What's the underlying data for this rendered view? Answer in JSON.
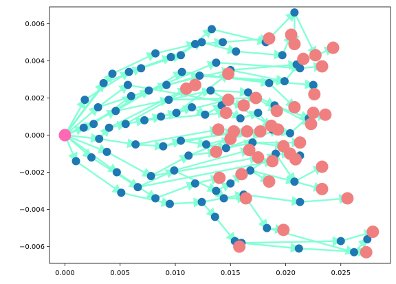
{
  "chart_data": {
    "type": "scatter",
    "title": "",
    "xlabel": "",
    "ylabel": "",
    "xlim": [
      -0.0014,
      0.0295
    ],
    "ylim": [
      -0.0069,
      0.0069
    ],
    "x_ticks": [
      0.0,
      0.005,
      0.01,
      0.015,
      0.02,
      0.025
    ],
    "x_tick_labels": [
      "0.000",
      "0.005",
      "0.010",
      "0.015",
      "0.020",
      "0.025"
    ],
    "y_ticks": [
      -0.006,
      -0.004,
      -0.002,
      0.0,
      0.002,
      0.004,
      0.006
    ],
    "y_tick_labels": [
      "−0.006",
      "−0.004",
      "−0.002",
      "0.000",
      "0.002",
      "0.004",
      "0.006"
    ],
    "grid": false,
    "legend": "none",
    "colors": {
      "node": "#1f77b4",
      "leaf": "#f08080",
      "root": "#ff69b4",
      "edge": "#7fffd4"
    },
    "root": [
      0.0,
      0.0
    ],
    "nodes": [
      [
        0.0018,
        0.0019
      ],
      [
        0.0035,
        0.0028
      ],
      [
        0.0043,
        0.0033
      ],
      [
        0.0058,
        0.0034
      ],
      [
        0.0069,
        0.0036
      ],
      [
        0.0082,
        0.0044
      ],
      [
        0.0096,
        0.0042
      ],
      [
        0.0105,
        0.0043
      ],
      [
        0.0118,
        0.0049
      ],
      [
        0.0124,
        0.005
      ],
      [
        0.0133,
        0.0057
      ],
      [
        0.0143,
        0.005
      ],
      [
        0.0155,
        0.0045
      ],
      [
        0.0182,
        0.005
      ],
      [
        0.0197,
        0.0043
      ],
      [
        0.0208,
        0.0066
      ],
      [
        0.021,
        0.0038
      ],
      [
        0.0213,
        0.0036
      ],
      [
        0.0225,
        0.0027
      ],
      [
        0.0199,
        0.0029
      ],
      [
        0.0185,
        0.0028
      ],
      [
        0.015,
        0.0035
      ],
      [
        0.0137,
        0.0039
      ],
      [
        0.0122,
        0.0032
      ],
      [
        0.0106,
        0.0034
      ],
      [
        0.0092,
        0.0027
      ],
      [
        0.0076,
        0.0024
      ],
      [
        0.006,
        0.0021
      ],
      [
        0.0046,
        0.0013
      ],
      [
        0.003,
        0.0015
      ],
      [
        0.0017,
        0.0004
      ],
      [
        0.0026,
        0.0006
      ],
      [
        0.004,
        0.0004
      ],
      [
        0.0055,
        0.0006
      ],
      [
        0.0072,
        0.0008
      ],
      [
        0.0087,
        0.001
      ],
      [
        0.0101,
        0.0012
      ],
      [
        0.0115,
        0.0015
      ],
      [
        0.0127,
        0.0011
      ],
      [
        0.0142,
        0.0016
      ],
      [
        0.0159,
        0.0009
      ],
      [
        0.0175,
        0.0012
      ],
      [
        0.0188,
        0.0003
      ],
      [
        0.0204,
        0.0001
      ],
      [
        0.001,
        -0.0014
      ],
      [
        0.0024,
        -0.0012
      ],
      [
        0.0038,
        -0.0009
      ],
      [
        0.0047,
        -0.002
      ],
      [
        0.0051,
        -0.0031
      ],
      [
        0.0066,
        -0.0028
      ],
      [
        0.0078,
        -0.0022
      ],
      [
        0.0082,
        -0.0034
      ],
      [
        0.0095,
        -0.0037
      ],
      [
        0.0099,
        -0.0019
      ],
      [
        0.0112,
        -0.0011
      ],
      [
        0.0118,
        -0.0026
      ],
      [
        0.0124,
        -0.0036
      ],
      [
        0.0137,
        -0.003
      ],
      [
        0.0136,
        -0.0044
      ],
      [
        0.0144,
        -0.0034
      ],
      [
        0.015,
        -0.0026
      ],
      [
        0.0162,
        -0.0032
      ],
      [
        0.0168,
        -0.0019
      ],
      [
        0.0154,
        -0.0057
      ],
      [
        0.016,
        -0.0058
      ],
      [
        0.0183,
        -0.005
      ],
      [
        0.0191,
        -0.001
      ],
      [
        0.0213,
        -0.0011
      ],
      [
        0.0208,
        -0.0025
      ],
      [
        0.0213,
        -0.0036
      ],
      [
        0.0212,
        -0.0061
      ],
      [
        0.025,
        -0.0057
      ],
      [
        0.0262,
        -0.0063
      ],
      [
        0.0274,
        -0.0056
      ],
      [
        0.0031,
        -0.0002
      ],
      [
        0.0064,
        -0.0005
      ],
      [
        0.0089,
        -0.0006
      ],
      [
        0.0105,
        -0.0003
      ],
      [
        0.0128,
        -0.0005
      ],
      [
        0.0146,
        -0.0007
      ],
      [
        0.017,
        -0.0004
      ],
      [
        0.0057,
        0.0027
      ],
      [
        0.0094,
        0.0019
      ],
      [
        0.0132,
        0.0024
      ],
      [
        0.0166,
        0.0023
      ],
      [
        0.019,
        0.0016
      ],
      [
        0.0221,
        0.0009
      ]
    ],
    "leaves": [
      [
        0.0185,
        0.0052
      ],
      [
        0.0205,
        0.0054
      ],
      [
        0.0208,
        0.0049
      ],
      [
        0.0227,
        0.0043
      ],
      [
        0.0243,
        0.0047
      ],
      [
        0.0233,
        0.0037
      ],
      [
        0.0216,
        0.0041
      ],
      [
        0.0226,
        0.0022
      ],
      [
        0.0208,
        0.0015
      ],
      [
        0.0225,
        0.0012
      ],
      [
        0.0236,
        0.0011
      ],
      [
        0.0223,
        0.0006
      ],
      [
        0.0192,
        0.0013
      ],
      [
        0.0187,
        0.0005
      ],
      [
        0.0173,
        0.002
      ],
      [
        0.0162,
        0.0016
      ],
      [
        0.0148,
        0.0033
      ],
      [
        0.0148,
        0.0019
      ],
      [
        0.0146,
        0.0012
      ],
      [
        0.0139,
        0.0003
      ],
      [
        0.0153,
        0.0002
      ],
      [
        0.0165,
        0.0002
      ],
      [
        0.0177,
        0.0002
      ],
      [
        0.0193,
        0.0003
      ],
      [
        0.0118,
        0.0027
      ],
      [
        0.011,
        0.0025
      ],
      [
        0.015,
        -0.0002
      ],
      [
        0.0167,
        -0.0008
      ],
      [
        0.0175,
        -0.0012
      ],
      [
        0.0188,
        -0.0014
      ],
      [
        0.0198,
        -0.0006
      ],
      [
        0.0213,
        -0.0004
      ],
      [
        0.0204,
        -0.001
      ],
      [
        0.0209,
        -0.0013
      ],
      [
        0.0233,
        -0.0017
      ],
      [
        0.016,
        -0.0021
      ],
      [
        0.0185,
        -0.0025
      ],
      [
        0.0233,
        -0.0029
      ],
      [
        0.0256,
        -0.0034
      ],
      [
        0.0164,
        -0.0034
      ],
      [
        0.0198,
        -0.0051
      ],
      [
        0.0279,
        -0.0052
      ],
      [
        0.0273,
        -0.0063
      ],
      [
        0.0158,
        -0.006
      ],
      [
        0.014,
        -0.0023
      ],
      [
        0.0137,
        -0.0009
      ]
    ],
    "edges": [
      [
        0.0,
        0.0,
        0.0018,
        0.0019
      ],
      [
        0.0,
        0.0,
        0.0035,
        0.0028
      ],
      [
        0.0,
        0.0,
        0.0043,
        0.0033
      ],
      [
        0.0,
        0.0,
        0.0017,
        0.0004
      ],
      [
        0.0,
        0.0,
        0.0026,
        0.0006
      ],
      [
        0.0,
        0.0,
        0.001,
        -0.0014
      ],
      [
        0.0,
        0.0,
        0.0024,
        -0.0012
      ],
      [
        0.0,
        0.0,
        0.0031,
        -0.0002
      ],
      [
        0.0,
        0.0,
        0.0046,
        0.0013
      ],
      [
        0.0,
        0.0,
        0.0038,
        -0.0009
      ],
      [
        0.0,
        0.0,
        0.0047,
        -0.002
      ],
      [
        0.0,
        0.0,
        0.003,
        0.0015
      ],
      [
        0.0018,
        0.0019,
        0.0058,
        0.0034
      ],
      [
        0.0035,
        0.0028,
        0.0069,
        0.0036
      ],
      [
        0.0043,
        0.0033,
        0.0082,
        0.0044
      ],
      [
        0.0058,
        0.0034,
        0.0096,
        0.0042
      ],
      [
        0.0069,
        0.0036,
        0.0105,
        0.0043
      ],
      [
        0.0082,
        0.0044,
        0.0118,
        0.0049
      ],
      [
        0.0096,
        0.0042,
        0.0124,
        0.005
      ],
      [
        0.0105,
        0.0043,
        0.0133,
        0.0057
      ],
      [
        0.0118,
        0.0049,
        0.0143,
        0.005
      ],
      [
        0.0124,
        0.005,
        0.0155,
        0.0045
      ],
      [
        0.0133,
        0.0057,
        0.0182,
        0.005
      ],
      [
        0.0143,
        0.005,
        0.0185,
        0.0052
      ],
      [
        0.0155,
        0.0045,
        0.0197,
        0.0043
      ],
      [
        0.0182,
        0.005,
        0.0208,
        0.0066
      ],
      [
        0.0197,
        0.0043,
        0.0205,
        0.0054
      ],
      [
        0.0208,
        0.0066,
        0.0208,
        0.0049
      ],
      [
        0.0208,
        0.0066,
        0.0227,
        0.0043
      ],
      [
        0.021,
        0.0038,
        0.0243,
        0.0047
      ],
      [
        0.0213,
        0.0036,
        0.0233,
        0.0037
      ],
      [
        0.0199,
        0.0029,
        0.0216,
        0.0041
      ],
      [
        0.0225,
        0.0027,
        0.0226,
        0.0022
      ],
      [
        0.0185,
        0.0028,
        0.0208,
        0.0015
      ],
      [
        0.015,
        0.0035,
        0.021,
        0.0038
      ],
      [
        0.0137,
        0.0039,
        0.0213,
        0.0036
      ],
      [
        0.0122,
        0.0032,
        0.0199,
        0.0029
      ],
      [
        0.0106,
        0.0034,
        0.0185,
        0.0028
      ],
      [
        0.0092,
        0.0027,
        0.015,
        0.0035
      ],
      [
        0.0076,
        0.0024,
        0.0137,
        0.0039
      ],
      [
        0.006,
        0.0021,
        0.0122,
        0.0032
      ],
      [
        0.0046,
        0.0013,
        0.0106,
        0.0034
      ],
      [
        0.003,
        0.0015,
        0.0092,
        0.0027
      ],
      [
        0.0017,
        0.0004,
        0.0076,
        0.0024
      ],
      [
        0.0026,
        0.0006,
        0.006,
        0.0021
      ],
      [
        0.0031,
        -0.0002,
        0.004,
        0.0004
      ],
      [
        0.004,
        0.0004,
        0.0055,
        0.0006
      ],
      [
        0.0055,
        0.0006,
        0.0072,
        0.0008
      ],
      [
        0.0072,
        0.0008,
        0.0087,
        0.001
      ],
      [
        0.0087,
        0.001,
        0.0101,
        0.0012
      ],
      [
        0.0101,
        0.0012,
        0.0115,
        0.0015
      ],
      [
        0.0115,
        0.0015,
        0.0127,
        0.0011
      ],
      [
        0.0127,
        0.0011,
        0.0142,
        0.0016
      ],
      [
        0.0142,
        0.0016,
        0.0159,
        0.0009
      ],
      [
        0.0159,
        0.0009,
        0.0175,
        0.0012
      ],
      [
        0.0175,
        0.0012,
        0.0188,
        0.0003
      ],
      [
        0.0188,
        0.0003,
        0.0204,
        0.0001
      ],
      [
        0.0204,
        0.0001,
        0.0225,
        0.0012
      ],
      [
        0.0221,
        0.0009,
        0.0236,
        0.0011
      ],
      [
        0.019,
        0.0016,
        0.0223,
        0.0006
      ],
      [
        0.0166,
        0.0023,
        0.0192,
        0.0013
      ],
      [
        0.0132,
        0.0024,
        0.0187,
        0.0005
      ],
      [
        0.0094,
        0.0019,
        0.0173,
        0.002
      ],
      [
        0.0057,
        0.0027,
        0.0162,
        0.0016
      ],
      [
        0.0101,
        0.0012,
        0.0148,
        0.0033
      ],
      [
        0.0087,
        0.001,
        0.0148,
        0.0019
      ],
      [
        0.0072,
        0.0008,
        0.0146,
        0.0012
      ],
      [
        0.0064,
        -0.0005,
        0.0139,
        0.0003
      ],
      [
        0.0089,
        -0.0006,
        0.0153,
        0.0002
      ],
      [
        0.0105,
        -0.0003,
        0.0165,
        0.0002
      ],
      [
        0.0128,
        -0.0005,
        0.0177,
        0.0002
      ],
      [
        0.0146,
        -0.0007,
        0.0193,
        0.0003
      ],
      [
        0.0055,
        0.0006,
        0.0118,
        0.0027
      ],
      [
        0.004,
        0.0004,
        0.011,
        0.0025
      ],
      [
        0.0031,
        -0.0002,
        0.0064,
        -0.0005
      ],
      [
        0.0064,
        -0.0005,
        0.0089,
        -0.0006
      ],
      [
        0.0089,
        -0.0006,
        0.0105,
        -0.0003
      ],
      [
        0.0105,
        -0.0003,
        0.0128,
        -0.0005
      ],
      [
        0.0128,
        -0.0005,
        0.0146,
        -0.0007
      ],
      [
        0.0146,
        -0.0007,
        0.017,
        -0.0004
      ],
      [
        0.017,
        -0.0004,
        0.0198,
        -0.0006
      ],
      [
        0.017,
        -0.0004,
        0.0213,
        -0.0004
      ],
      [
        0.0112,
        -0.0011,
        0.015,
        -0.0002
      ],
      [
        0.0099,
        -0.0019,
        0.0167,
        -0.0008
      ],
      [
        0.0078,
        -0.0022,
        0.0175,
        -0.0012
      ],
      [
        0.0066,
        -0.0028,
        0.0188,
        -0.0014
      ],
      [
        0.0191,
        -0.001,
        0.0204,
        -0.001
      ],
      [
        0.0213,
        -0.0011,
        0.0209,
        -0.0013
      ],
      [
        0.0208,
        -0.0025,
        0.0233,
        -0.0017
      ],
      [
        0.001,
        -0.0014,
        0.0051,
        -0.0031
      ],
      [
        0.0024,
        -0.0012,
        0.0066,
        -0.0028
      ],
      [
        0.0038,
        -0.0009,
        0.0078,
        -0.0022
      ],
      [
        0.0047,
        -0.002,
        0.0082,
        -0.0034
      ],
      [
        0.0051,
        -0.0031,
        0.0095,
        -0.0037
      ],
      [
        0.0066,
        -0.0028,
        0.0099,
        -0.0019
      ],
      [
        0.0078,
        -0.0022,
        0.0112,
        -0.0011
      ],
      [
        0.0082,
        -0.0034,
        0.0118,
        -0.0026
      ],
      [
        0.0095,
        -0.0037,
        0.0124,
        -0.0036
      ],
      [
        0.0099,
        -0.0019,
        0.0137,
        -0.003
      ],
      [
        0.0112,
        -0.0011,
        0.0137,
        -0.0009
      ],
      [
        0.0118,
        -0.0026,
        0.014,
        -0.0023
      ],
      [
        0.0124,
        -0.0036,
        0.0136,
        -0.0044
      ],
      [
        0.0137,
        -0.003,
        0.015,
        -0.0026
      ],
      [
        0.0136,
        -0.0044,
        0.0154,
        -0.0057
      ],
      [
        0.0144,
        -0.0034,
        0.0164,
        -0.0034
      ],
      [
        0.015,
        -0.0026,
        0.016,
        -0.0021
      ],
      [
        0.0162,
        -0.0032,
        0.0183,
        -0.005
      ],
      [
        0.0168,
        -0.0019,
        0.0185,
        -0.0025
      ],
      [
        0.0154,
        -0.0057,
        0.0158,
        -0.006
      ],
      [
        0.016,
        -0.0058,
        0.0212,
        -0.0061
      ],
      [
        0.0183,
        -0.005,
        0.0198,
        -0.0051
      ],
      [
        0.0191,
        -0.001,
        0.0208,
        -0.0025
      ],
      [
        0.0208,
        -0.0025,
        0.0233,
        -0.0029
      ],
      [
        0.0213,
        -0.0036,
        0.0256,
        -0.0034
      ],
      [
        0.0212,
        -0.0061,
        0.0273,
        -0.0063
      ],
      [
        0.025,
        -0.0057,
        0.0279,
        -0.0052
      ],
      [
        0.0262,
        -0.0063,
        0.0274,
        -0.0056
      ],
      [
        0.0137,
        -0.003,
        0.0144,
        -0.0034
      ],
      [
        0.0124,
        -0.0036,
        0.0162,
        -0.0032
      ],
      [
        0.015,
        -0.0026,
        0.0168,
        -0.0019
      ],
      [
        0.0168,
        -0.0019,
        0.0191,
        -0.001
      ],
      [
        0.0191,
        -0.001,
        0.0213,
        -0.0011
      ],
      [
        0.0168,
        -0.0019,
        0.0208,
        -0.0025
      ],
      [
        0.0162,
        -0.0032,
        0.0213,
        -0.0036
      ],
      [
        0.016,
        -0.0058,
        0.025,
        -0.0057
      ],
      [
        0.0154,
        -0.0057,
        0.016,
        -0.0058
      ],
      [
        0.0183,
        -0.005,
        0.0262,
        -0.0063
      ],
      [
        0.0094,
        0.0019,
        0.0132,
        0.0024
      ],
      [
        0.0132,
        0.0024,
        0.0166,
        0.0023
      ],
      [
        0.0166,
        0.0023,
        0.019,
        0.0016
      ],
      [
        0.019,
        0.0016,
        0.0221,
        0.0009
      ],
      [
        0.0046,
        0.0013,
        0.0094,
        0.0019
      ],
      [
        0.003,
        0.0015,
        0.0057,
        0.0027
      ],
      [
        0.0122,
        0.0032,
        0.0225,
        0.0027
      ],
      [
        0.015,
        0.0035,
        0.0199,
        0.0029
      ]
    ]
  }
}
